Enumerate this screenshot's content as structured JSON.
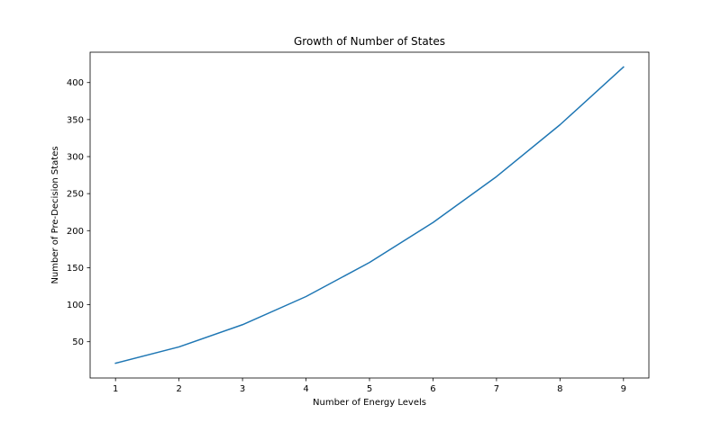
{
  "chart_data": {
    "type": "line",
    "title": "Growth of Number of States",
    "xlabel": "Number of Energy Levels",
    "ylabel": "Number of Pre-Decision States",
    "x": [
      1,
      2,
      3,
      4,
      5,
      6,
      7,
      8,
      9
    ],
    "series": [
      {
        "values": [
          21,
          43,
          73,
          111,
          157,
          211,
          273,
          343,
          421
        ],
        "color": "#1f77b4"
      }
    ],
    "xlim": [
      0.6,
      9.4
    ],
    "ylim": [
      1,
      441
    ],
    "xticks": [
      1,
      2,
      3,
      4,
      5,
      6,
      7,
      8,
      9
    ],
    "yticks": [
      50,
      100,
      150,
      200,
      250,
      300,
      350,
      400
    ],
    "grid": false,
    "legend": "none"
  }
}
